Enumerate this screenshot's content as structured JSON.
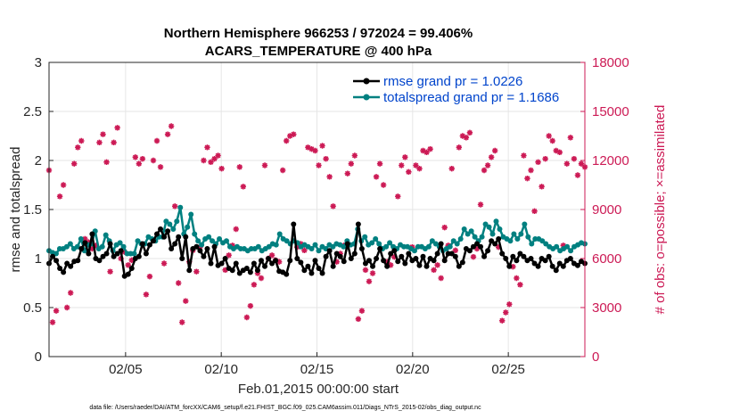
{
  "chart_data": {
    "type": "line",
    "title": "Northern Hemisphere 966253 / 972024 = 99.406%",
    "subtitle": "ACARS_TEMPERATURE @ 400 hPa",
    "xlabel": "Feb.01,2015 00:00:00 start",
    "ylabel_left": "rmse and totalspread",
    "ylabel_right": "# of obs: o=possible; ×=assimilated",
    "footnote": "data file: /Users/raeder/DAI/ATM_forcXX/CAM6_setup/f.e21.FHIST_BGC.f09_025.CAM6assim.011/Diags_NTrS_2015-02/obs_diag_output.nc",
    "xlim": [
      1,
      29
    ],
    "ylim_left": [
      0,
      3
    ],
    "ylim_right": [
      0,
      18000
    ],
    "x_ticks": [
      5,
      10,
      15,
      20,
      25
    ],
    "x_tick_labels": [
      "02/05",
      "02/10",
      "02/15",
      "02/20",
      "02/25"
    ],
    "y_ticks_left": [
      0,
      0.5,
      1,
      1.5,
      2,
      2.5,
      3
    ],
    "y_tick_labels_left": [
      "0",
      "0.5",
      "1",
      "1.5",
      "2",
      "2.5",
      "3"
    ],
    "y_ticks_right": [
      0,
      3000,
      6000,
      9000,
      12000,
      15000,
      18000
    ],
    "y_tick_labels_right": [
      "0",
      "3000",
      "6000",
      "9000",
      "12000",
      "15000",
      "18000"
    ],
    "grid": true,
    "legend_position": "top-right",
    "colors": {
      "rmse": "#000000",
      "spread": "#008080",
      "obs": "#cc1a55",
      "legend_text": "#0044cc",
      "right_axis": "#cc1a55"
    },
    "series": [
      {
        "name": "rmse grand pr = 1.0226",
        "axis": "left",
        "values": [
          0.95,
          1.02,
          0.98,
          0.9,
          0.86,
          0.95,
          0.92,
          0.97,
          0.98,
          1.1,
          1.16,
          1.05,
          1.25,
          1.0,
          0.98,
          1.02,
          1.05,
          1.15,
          1.02,
          1.05,
          1.08,
          0.82,
          0.84,
          0.9,
          1.0,
          1.02,
          1.15,
          1.05,
          1.14,
          1.18,
          1.25,
          1.3,
          1.22,
          1.28,
          1.1,
          1.15,
          1.22,
          1.0,
          1.22,
          0.88,
          1.1,
          1.12,
          1.08,
          1.02,
          1.1,
          0.95,
          1.12,
          0.93,
          0.95,
          1.0,
          0.9,
          0.88,
          0.95,
          0.85,
          0.88,
          0.9,
          0.86,
          0.95,
          0.88,
          0.98,
          0.92,
          1.0,
          0.95,
          0.98,
          0.87,
          0.86,
          0.84,
          0.98,
          1.35,
          1.0,
          0.96,
          0.88,
          0.92,
          0.85,
          0.98,
          0.9,
          0.85,
          1.02,
          1.08,
          0.92,
          1.05,
          1.02,
          0.97,
          1.15,
          1.0,
          1.05,
          1.35,
          1.1,
          0.95,
          0.98,
          0.92,
          1.0,
          1.1,
          0.98,
          0.92,
          1.05,
          1.08,
          0.97,
          1.02,
          0.95,
          1.05,
          0.98,
          1.0,
          0.93,
          1.02,
          0.92,
          1.0,
          0.98,
          1.05,
          1.15,
          0.98,
          1.05,
          1.05,
          1.02,
          0.92,
          0.96,
          1.1,
          1.08,
          1.12,
          1.15,
          1.12,
          1.02,
          1.08,
          1.18,
          1.15,
          1.2,
          1.05,
          1.0,
          0.92,
          1.02,
          0.98,
          1.05,
          1.02,
          0.98,
          1.0,
          0.95,
          0.92,
          1.0,
          0.98,
          1.02,
          0.92,
          0.88,
          0.95,
          0.92,
          0.98,
          1.0,
          0.95,
          0.93,
          0.97,
          0.95
        ]
      },
      {
        "name": "totalspread grand pr = 1.1686",
        "axis": "left",
        "values": [
          1.08,
          1.06,
          1.05,
          1.1,
          1.1,
          1.12,
          1.15,
          1.1,
          1.12,
          1.2,
          1.08,
          1.14,
          1.15,
          1.28,
          1.1,
          1.12,
          1.24,
          1.18,
          1.08,
          1.14,
          1.16,
          1.12,
          1.05,
          1.05,
          1.05,
          1.18,
          1.15,
          1.15,
          1.22,
          1.2,
          1.18,
          1.22,
          1.22,
          1.38,
          1.35,
          1.3,
          1.38,
          1.52,
          1.25,
          1.32,
          1.45,
          1.25,
          1.18,
          1.14,
          1.2,
          1.22,
          1.18,
          1.15,
          1.2,
          1.16,
          1.18,
          1.12,
          1.1,
          1.12,
          1.1,
          1.1,
          1.08,
          1.1,
          1.1,
          1.12,
          1.08,
          1.1,
          1.12,
          1.15,
          1.14,
          1.25,
          1.2,
          1.18,
          1.15,
          1.18,
          1.16,
          1.12,
          1.14,
          1.12,
          1.1,
          1.14,
          1.08,
          1.12,
          1.1,
          1.14,
          1.12,
          1.15,
          1.14,
          1.12,
          1.18,
          1.14,
          1.15,
          1.3,
          1.18,
          1.22,
          1.14,
          1.16,
          1.2,
          1.15,
          1.1,
          1.12,
          1.16,
          1.12,
          1.1,
          1.14,
          1.12,
          1.12,
          1.1,
          1.08,
          1.12,
          1.12,
          1.1,
          1.12,
          1.18,
          1.15,
          1.12,
          1.08,
          1.1,
          1.12,
          1.18,
          1.15,
          1.2,
          1.3,
          1.25,
          1.28,
          1.22,
          1.18,
          1.22,
          1.35,
          1.32,
          1.25,
          1.38,
          1.3,
          1.22,
          1.2,
          1.18,
          1.25,
          1.2,
          1.25,
          1.35,
          1.22,
          1.15,
          1.2,
          1.2,
          1.18,
          1.15,
          1.12,
          1.1,
          1.12,
          1.08,
          1.1,
          1.12,
          1.08,
          1.12,
          1.14,
          1.16,
          1.15
        ]
      },
      {
        "name": "# of obs possible/assimilated",
        "axis": "right",
        "values": [
          11400,
          2100,
          2800,
          9800,
          10500,
          3000,
          3900,
          11800,
          12800,
          13200,
          7200,
          7000,
          6600,
          6800,
          13100,
          13600,
          11900,
          5200,
          13100,
          14000,
          6000,
          6400,
          5600,
          5900,
          12200,
          11800,
          12100,
          3800,
          4900,
          12000,
          13200,
          11600,
          5700,
          13600,
          14100,
          9200,
          4500,
          2100,
          3400,
          5800,
          6500,
          5200,
          6700,
          12000,
          12800,
          11900,
          12100,
          12300,
          11500,
          5300,
          6200,
          6800,
          7800,
          11600,
          10400,
          2400,
          3100,
          4400,
          5100,
          4800,
          11700,
          6000,
          6200,
          5900,
          5800,
          11400,
          13200,
          13500,
          13600,
          6700,
          6900,
          6500,
          12800,
          12700,
          12600,
          11700,
          12900,
          12100,
          11000,
          9200,
          5800,
          6300,
          6800,
          11200,
          11800,
          12300,
          2300,
          2800,
          5300,
          4600,
          5100,
          11000,
          11800,
          10500,
          5800,
          5600,
          6100,
          9800,
          11700,
          12200,
          11300,
          6700,
          11700,
          11500,
          12600,
          12500,
          12700,
          5300,
          5600,
          4800,
          7900,
          6800,
          11500,
          6500,
          12800,
          13500,
          13400,
          13700,
          6100,
          6600,
          9300,
          11400,
          11700,
          12200,
          12600,
          6700,
          2200,
          2700,
          3200,
          5500,
          4800,
          4400,
          12300,
          10900,
          11400,
          8900,
          11900,
          10400,
          12100,
          13500,
          13200,
          12600,
          12500,
          6800,
          11800,
          13400,
          12100,
          11100,
          11800,
          11600
        ]
      }
    ]
  }
}
